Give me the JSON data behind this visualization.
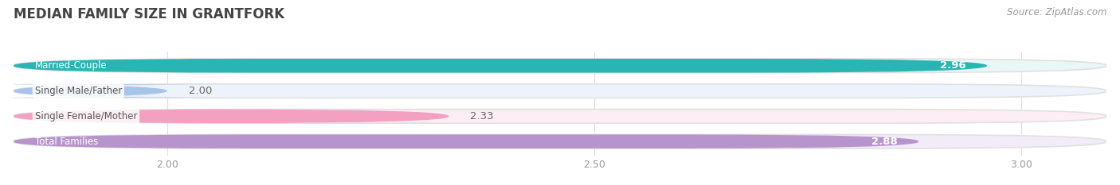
{
  "title": "MEDIAN FAMILY SIZE IN GRANTFORK",
  "source": "Source: ZipAtlas.com",
  "categories": [
    "Married-Couple",
    "Single Male/Father",
    "Single Female/Mother",
    "Total Families"
  ],
  "values": [
    2.96,
    2.0,
    2.33,
    2.88
  ],
  "bar_colors": [
    "#2ab5b5",
    "#a8c4e8",
    "#f4a0c0",
    "#b894cc"
  ],
  "bar_bg_colors": [
    "#eaf7f7",
    "#eef3fb",
    "#fdeef5",
    "#f2ecf8"
  ],
  "xlim_start": 1.82,
  "xlim_end": 3.1,
  "xticks": [
    2.0,
    2.5,
    3.0
  ],
  "label_fontsize": 8.5,
  "value_fontsize": 9.5,
  "title_fontsize": 12,
  "source_fontsize": 8.5,
  "background_color": "#ffffff",
  "grid_color": "#dddddd",
  "tick_label_color": "#999999"
}
